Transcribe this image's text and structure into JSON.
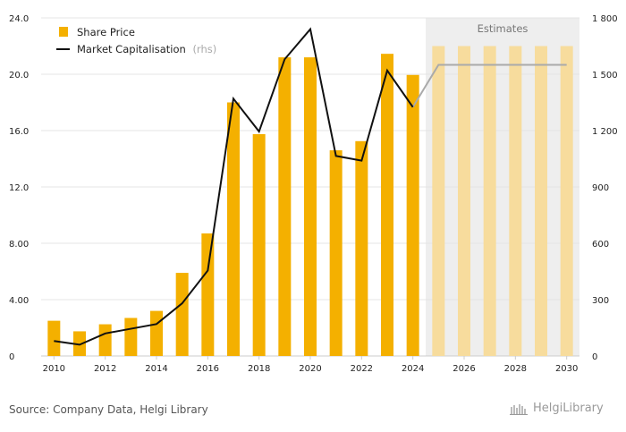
{
  "chart_data": {
    "type": "bar",
    "categories": [
      2010,
      2011,
      2012,
      2013,
      2014,
      2015,
      2016,
      2017,
      2018,
      2019,
      2020,
      2021,
      2022,
      2023,
      2024,
      2025,
      2026,
      2027,
      2028,
      2029,
      2030
    ],
    "tick_labels": [
      "2010",
      "2012",
      "2014",
      "2016",
      "2018",
      "2020",
      "2022",
      "2024",
      "2026",
      "2028",
      "2030"
    ],
    "series": [
      {
        "name": "Share Price",
        "kind": "bar",
        "axis": "left",
        "values": [
          2.5,
          1.75,
          2.25,
          2.7,
          3.2,
          5.9,
          8.7,
          18.0,
          15.75,
          21.2,
          21.2,
          14.6,
          15.25,
          21.45,
          19.95,
          22.0,
          22.0,
          22.0,
          22.0,
          22.0,
          22.0
        ],
        "color": "#f4b000",
        "estimate_color": "#f7dc9d"
      },
      {
        "name": "Market Capitalisation",
        "suffix": "(rhs)",
        "kind": "line",
        "axis": "right",
        "values": [
          80,
          60,
          120,
          145,
          170,
          280,
          455,
          1370,
          1195,
          1580,
          1740,
          1065,
          1040,
          1520,
          1325,
          1550,
          1550,
          1550,
          1550,
          1550,
          1550
        ],
        "color": "#111111",
        "estimate_color": "#aaaaaa"
      }
    ],
    "estimate_start": 2025,
    "estimates_label": "Estimates",
    "y_left": {
      "min": 0,
      "max": 24,
      "ticks": [
        "0",
        "4.00",
        "8.00",
        "12.0",
        "16.0",
        "20.0",
        "24.0"
      ]
    },
    "y_right": {
      "min": 0,
      "max": 1800,
      "ticks": [
        "0",
        "300",
        "600",
        "900",
        "1 200",
        "1 500",
        "1 800"
      ]
    },
    "grid": true,
    "legend": "top-left",
    "colors": {
      "estimates_bg": "#eeeeee",
      "grid": "#e4e4e4",
      "axis": "#cccccc"
    }
  },
  "source": "Source: Company Data, Helgi Library",
  "brand": "HelgiLibrary",
  "brand_icon": "helgi-books-icon"
}
